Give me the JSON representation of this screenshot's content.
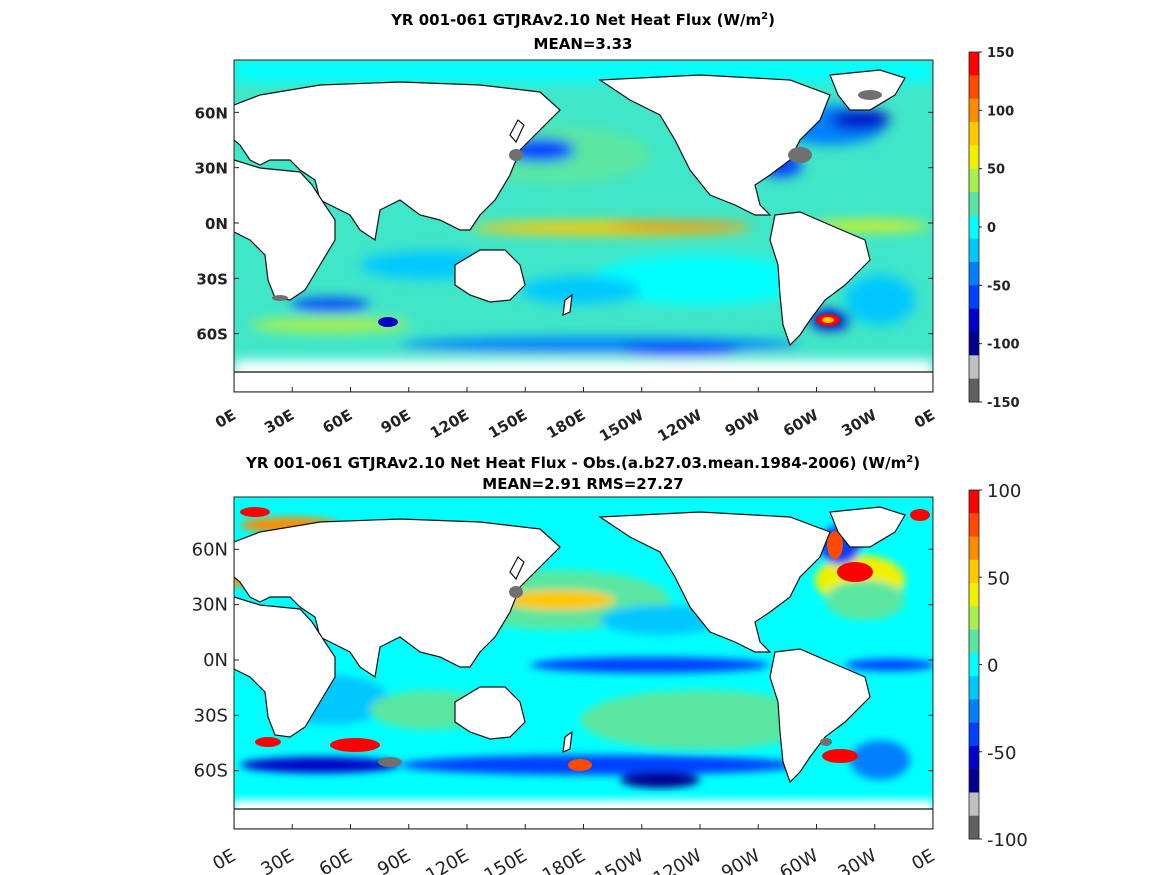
{
  "panels": [
    {
      "id": "top",
      "title_main": "YR 001-061 GTJRAv2.10  Net Heat Flux (W/m",
      "title_sup": "2",
      "title_close": ")",
      "subtitle": "MEAN=3.33",
      "lat_labels": [
        "60N",
        "30N",
        "0N",
        "30S",
        "60S"
      ],
      "lon_labels": [
        "0E",
        "30E",
        "60E",
        "90E",
        "120E",
        "150E",
        "180E",
        "150W",
        "120W",
        "90W",
        "60W",
        "30W",
        "0E"
      ],
      "colorbar": {
        "tick_labels": [
          "150",
          "100",
          "50",
          "0",
          "-50",
          "-100",
          "-150"
        ],
        "colors": [
          "#ff0000",
          "#ff4a00",
          "#ff8c00",
          "#ffc800",
          "#f0f000",
          "#a8f050",
          "#5ae6a0",
          "#00ffff",
          "#00c8ff",
          "#0080ff",
          "#0040ff",
          "#0000c8",
          "#00008c",
          "#c0c0c0",
          "#606060"
        ]
      }
    },
    {
      "id": "bottom",
      "title_main": "YR 001-061 GTJRAv2.10  Net Heat Flux - Obs.(a.b27.03.mean.1984-2006) (W/m",
      "title_sup": "2",
      "title_close": ")",
      "subtitle": "MEAN=2.91 RMS=27.27",
      "lat_labels": [
        "60N",
        "30N",
        "0N",
        "30S",
        "60S"
      ],
      "lon_labels": [
        "0E",
        "30E",
        "60E",
        "90E",
        "120E",
        "150E",
        "180E",
        "150W",
        "120W",
        "90W",
        "60W",
        "30W",
        "0E"
      ],
      "colorbar": {
        "tick_labels": [
          "100",
          "50",
          "0",
          "-50",
          "-100"
        ],
        "colors": [
          "#ff0000",
          "#ff4a00",
          "#ff8c00",
          "#ffc800",
          "#f0f000",
          "#a8f050",
          "#5ae6a0",
          "#00ffff",
          "#00c8ff",
          "#0080ff",
          "#0040ff",
          "#0000c8",
          "#00008c",
          "#c0c0c0",
          "#606060"
        ]
      }
    }
  ],
  "colors": {
    "ocean_base": "#40e6c8",
    "land": "#ffffff",
    "ice": "#707070",
    "sea_ice_edge": "#00ffff"
  }
}
